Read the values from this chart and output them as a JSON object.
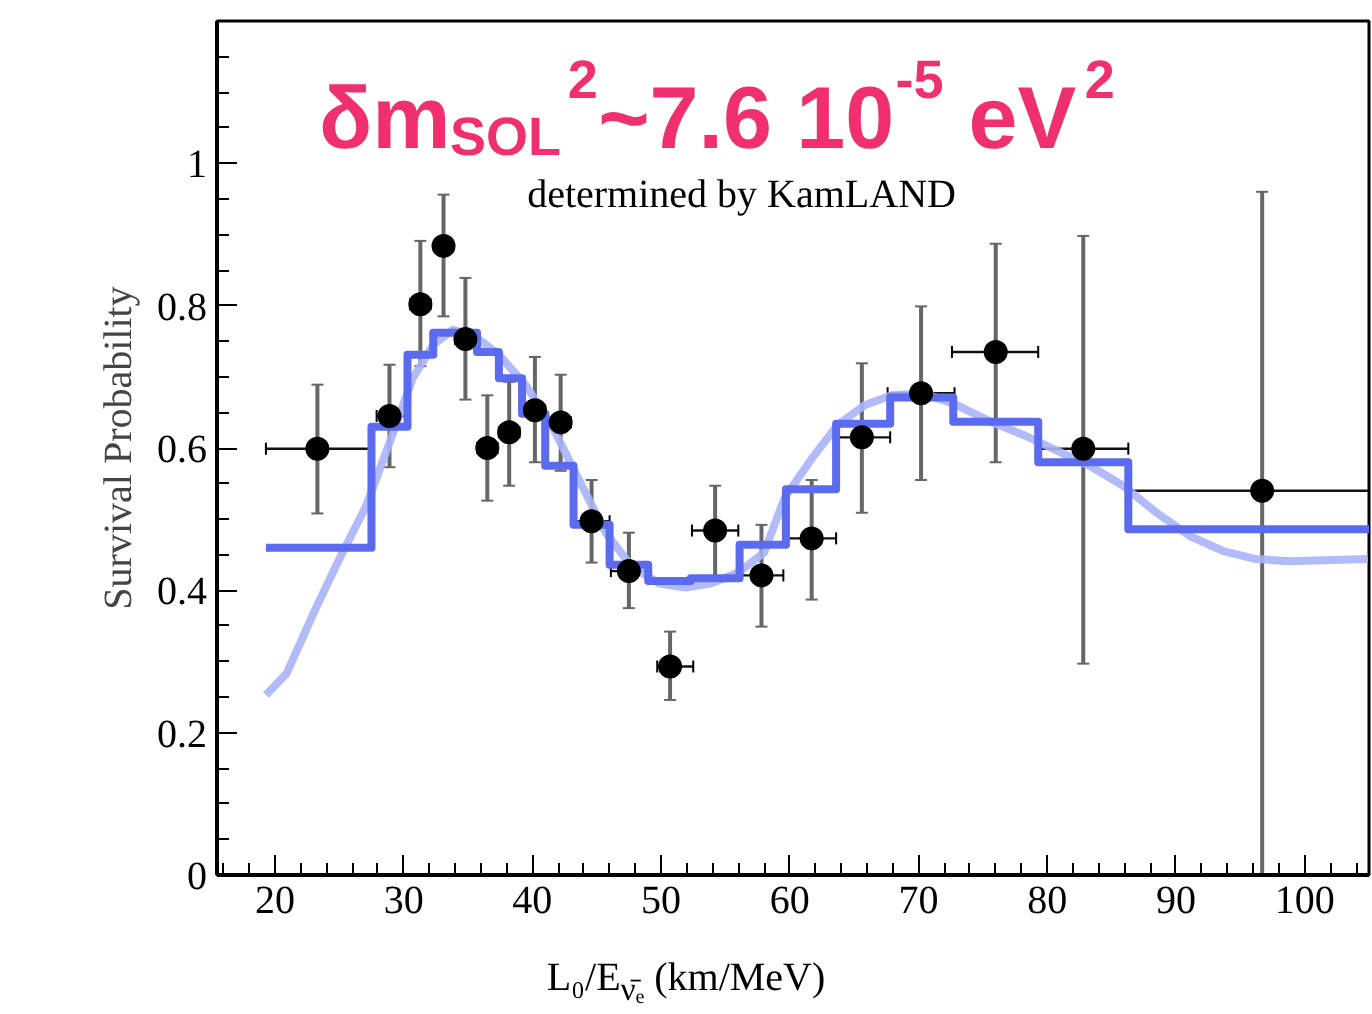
{
  "chart_data": {
    "type": "scatter",
    "title": "δm$_{SOL}$$^{2}$~7.6 10$^{-5}$ eV$^{2}$",
    "annotations": [
      "determined by KamLAND"
    ],
    "xlabel": "L₀/E$_{ν̄ₑ}$ (km/MeV)",
    "ylabel": "Survival Probability",
    "xlim": [
      15.5,
      105
    ],
    "ylim": [
      0,
      1.2
    ],
    "xticks": [
      20,
      30,
      40,
      50,
      60,
      70,
      80,
      90,
      100
    ],
    "yticks": [
      0,
      0.2,
      0.4,
      0.6,
      0.8,
      1
    ],
    "grid": false,
    "series": [
      {
        "type": "line",
        "color": "#aab4f8",
        "x": [
          19.3,
          20.9,
          23.0,
          25.0,
          27.1,
          29.2,
          30.7,
          32.3,
          33.8,
          35.4,
          37.4,
          39.5,
          41.5,
          43.6,
          45.7,
          47.7,
          49.8,
          51.9,
          53.9,
          56.0,
          58.0,
          59.6,
          61.7,
          63.7,
          65.8,
          67.9,
          70.4,
          73.0,
          75.6,
          78.2,
          80.8,
          83.3,
          85.9,
          88.5,
          91.1,
          93.7,
          96.2,
          98.8,
          104.9
        ],
        "values": [
          0.253,
          0.283,
          0.368,
          0.444,
          0.519,
          0.622,
          0.698,
          0.745,
          0.766,
          0.759,
          0.731,
          0.688,
          0.632,
          0.556,
          0.481,
          0.434,
          0.41,
          0.404,
          0.41,
          0.425,
          0.453,
          0.53,
          0.585,
          0.632,
          0.66,
          0.674,
          0.677,
          0.66,
          0.637,
          0.618,
          0.596,
          0.575,
          0.547,
          0.509,
          0.476,
          0.455,
          0.444,
          0.441,
          0.444
        ]
      },
      {
        "type": "step",
        "color": "#5b6bf0",
        "x": [
          19.3,
          27.5,
          30.3,
          32.3,
          35.7,
          37.4,
          39.2,
          41.0,
          43.2,
          46.0,
          49.0,
          52.3,
          56.1,
          59.7,
          63.6,
          67.8,
          72.7,
          79.3,
          86.3,
          105
        ],
        "values": [
          0.46,
          0.63,
          0.731,
          0.762,
          0.735,
          0.698,
          0.648,
          0.575,
          0.492,
          0.436,
          0.413,
          0.417,
          0.464,
          0.542,
          0.634,
          0.671,
          0.637,
          0.58,
          0.486,
          0.486
        ]
      },
      {
        "color": "#000000",
        "marker": "circle",
        "x": [
          23.3,
          28.9,
          31.3,
          33.1,
          34.8,
          36.5,
          38.2,
          40.2,
          42.2,
          44.6,
          47.5,
          50.7,
          54.2,
          57.8,
          61.7,
          65.6,
          70.2,
          76.0,
          82.8,
          96.7
        ],
        "values": [
          0.599,
          0.645,
          0.802,
          0.884,
          0.753,
          0.6,
          0.622,
          0.653,
          0.636,
          0.497,
          0.427,
          0.293,
          0.484,
          0.421,
          0.473,
          0.615,
          0.677,
          0.735,
          0.599,
          0.54
        ],
        "errors": [
          [
            0.508,
            0.689
          ],
          [
            0.573,
            0.717
          ],
          [
            0.715,
            0.891
          ],
          [
            0.785,
            0.956
          ],
          [
            0.668,
            0.839
          ],
          [
            0.526,
            0.674
          ],
          [
            0.547,
            0.693
          ],
          [
            0.58,
            0.728
          ],
          [
            0.568,
            0.703
          ],
          [
            0.439,
            0.555
          ],
          [
            0.375,
            0.481
          ],
          [
            0.246,
            0.342
          ],
          [
            0.418,
            0.547
          ],
          [
            0.349,
            0.492
          ],
          [
            0.387,
            0.555
          ],
          [
            0.509,
            0.719
          ],
          [
            0.555,
            0.799
          ],
          [
            0.58,
            0.887
          ],
          [
            0.297,
            0.898
          ],
          [
            0,
            0.96
          ]
        ],
        "xerrors": [
          [
            19.3,
            27.4
          ],
          [
            27.9,
            30.4
          ],
          0.8,
          null,
          0.8,
          0.8,
          0.8,
          0.8,
          0.8,
          [
            43.2,
            46.0
          ],
          [
            46.1,
            49.0
          ],
          [
            49.7,
            52.5
          ],
          [
            52.4,
            56.0
          ],
          [
            56.0,
            59.5
          ],
          [
            59.6,
            63.6
          ],
          [
            63.5,
            67.8
          ],
          [
            67.6,
            72.8
          ],
          [
            72.6,
            79.3
          ],
          [
            79.3,
            86.3
          ],
          [
            86.3,
            105
          ]
        ]
      }
    ]
  }
}
